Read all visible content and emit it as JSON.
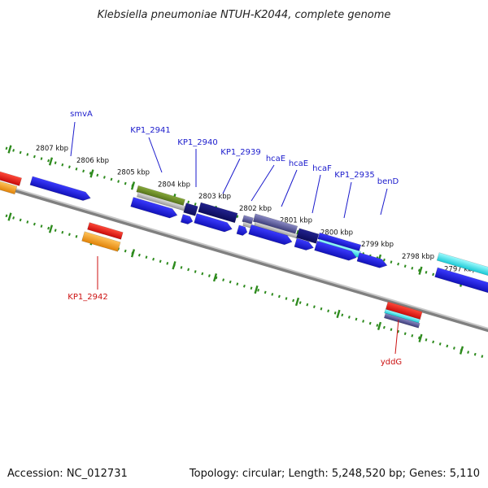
{
  "title": "Klebsiella pneumoniae NTUH-K2044, complete genome",
  "footer": {
    "accession": "Accession: NC_012731",
    "stats": "Topology: circular; Length: 5,248,520 bp; Genes: 5,110"
  },
  "ticks": [
    {
      "label": "2807 kbp"
    },
    {
      "label": "2806 kbp"
    },
    {
      "label": "2805 kbp"
    },
    {
      "label": "2804 kbp"
    },
    {
      "label": "2803 kbp"
    },
    {
      "label": "2802 kbp"
    },
    {
      "label": "2801 kbp"
    },
    {
      "label": "2800 kbp"
    },
    {
      "label": "2799 kbp"
    },
    {
      "label": "2798 kbp"
    },
    {
      "label": "2797 kbp"
    }
  ],
  "gene_labels": [
    {
      "label": "smvA"
    },
    {
      "label": "KP1_2941"
    },
    {
      "label": "KP1_2940"
    },
    {
      "label": "KP1_2939"
    },
    {
      "label": "hcaE"
    },
    {
      "label": "hcaE"
    },
    {
      "label": "hcaF"
    },
    {
      "label": "KP1_2935"
    },
    {
      "label": "benD"
    },
    {
      "label": "KP1_2942"
    },
    {
      "label": "yddG"
    }
  ],
  "colors": {
    "backbone": "#808080",
    "tick": "#2e8b1e",
    "blue": "#1a1ad6",
    "navy": "#14147a",
    "olive": "#6e8f1e",
    "cyan": "#1fe0e8",
    "red": "#e01010",
    "orange": "#f29a14",
    "slate": "#58589a",
    "label_blue": "#1a1acc",
    "label_red": "#cc1111"
  }
}
